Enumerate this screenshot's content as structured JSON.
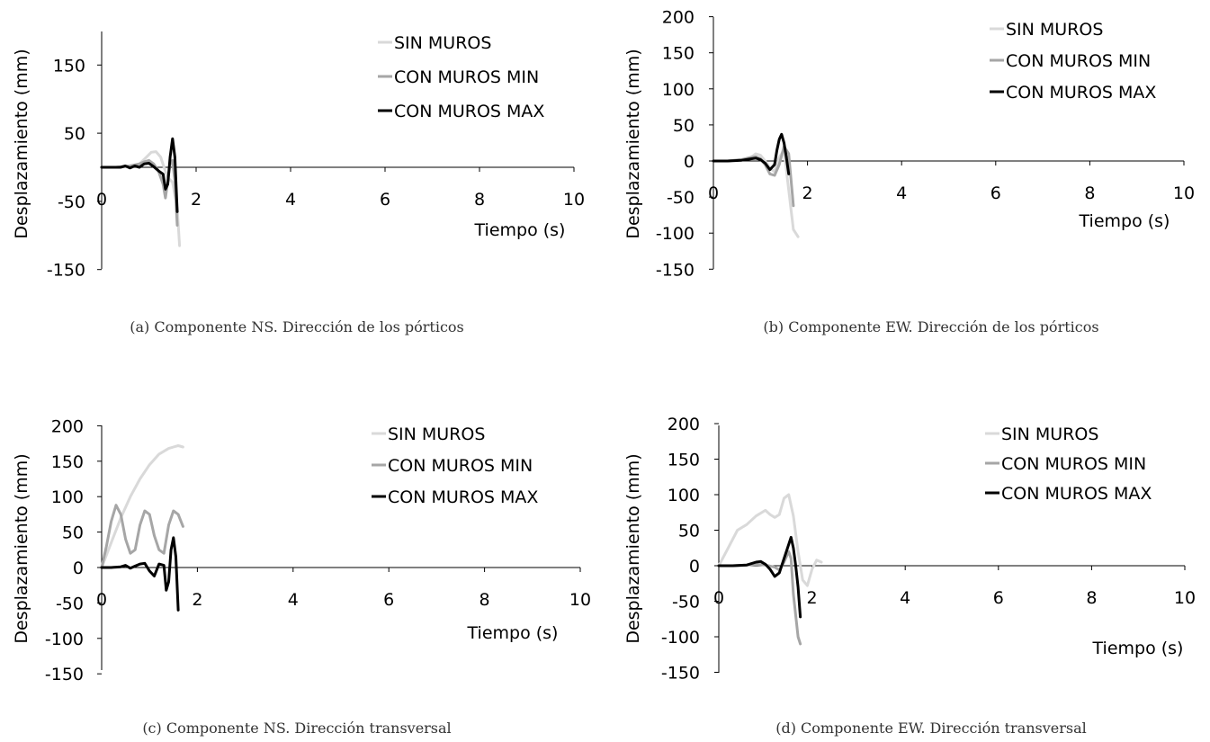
{
  "chart_data": [
    {
      "type": "line",
      "caption": "(a) Componente NS. Dirección de los pórticos",
      "xlabel": "Tiempo (s)",
      "ylabel": "Desplazamiento (mm)",
      "xlim": [
        0,
        10
      ],
      "ylim": [
        -150,
        200
      ],
      "xticks": [
        0,
        2,
        4,
        6,
        8,
        10
      ],
      "xtick_labels": [
        "0",
        "2",
        "4",
        "6",
        "8",
        "10"
      ],
      "yticks": [
        150,
        50,
        -50,
        -150
      ],
      "ytick_labels": [
        "150",
        "50",
        "-50",
        "-150"
      ],
      "grid": false,
      "legend_position": "top-right",
      "series": [
        {
          "name": "SIN MUROS",
          "color": "#d9d9d9",
          "x": [
            0,
            0.3,
            0.6,
            0.8,
            0.95,
            1.05,
            1.15,
            1.25,
            1.32,
            1.4,
            1.5,
            1.6,
            1.65
          ],
          "y": [
            0,
            0,
            2,
            5,
            15,
            22,
            23,
            15,
            0,
            -15,
            -22,
            -60,
            -115
          ]
        },
        {
          "name": "CON MUROS MIN",
          "color": "#a6a6a6",
          "x": [
            0,
            0.3,
            0.6,
            0.8,
            0.9,
            1.0,
            1.1,
            1.2,
            1.3,
            1.35,
            1.4,
            1.45,
            1.5,
            1.55,
            1.6
          ],
          "y": [
            0,
            0,
            2,
            5,
            8,
            10,
            5,
            -5,
            -25,
            -45,
            -20,
            5,
            10,
            -20,
            -85
          ]
        },
        {
          "name": "CON MUROS MAX",
          "color": "#000000",
          "x": [
            0,
            0.2,
            0.4,
            0.5,
            0.6,
            0.7,
            0.8,
            0.9,
            1.0,
            1.1,
            1.2,
            1.3,
            1.35,
            1.4,
            1.45,
            1.5,
            1.55,
            1.6
          ],
          "y": [
            0,
            0,
            0,
            2,
            -1,
            2,
            0,
            5,
            6,
            1,
            -5,
            -10,
            -32,
            -25,
            15,
            42,
            15,
            -65
          ]
        }
      ]
    },
    {
      "type": "line",
      "caption": "(b) Componente EW. Dirección de los pórticos",
      "xlabel": "Tiempo (s)",
      "ylabel": "Desplazamiento (mm)",
      "xlim": [
        0,
        10
      ],
      "ylim": [
        -150,
        200
      ],
      "xticks": [
        0,
        2,
        4,
        6,
        8,
        10
      ],
      "xtick_labels": [
        "0",
        "2",
        "4",
        "6",
        "8",
        "10"
      ],
      "yticks": [
        200,
        150,
        100,
        50,
        0,
        -50,
        -100,
        -150
      ],
      "ytick_labels": [
        "200",
        "150",
        "100",
        "50",
        "0",
        "-50",
        "-100",
        "-150"
      ],
      "grid": false,
      "legend_position": "top-right",
      "series": [
        {
          "name": "SIN MUROS",
          "color": "#d9d9d9",
          "x": [
            0,
            0.3,
            0.6,
            0.8,
            0.9,
            1.0,
            1.1,
            1.2,
            1.3,
            1.4,
            1.5,
            1.6,
            1.7,
            1.8
          ],
          "y": [
            0,
            0,
            2,
            5,
            10,
            8,
            0,
            -10,
            -15,
            5,
            15,
            -40,
            -95,
            -105
          ]
        },
        {
          "name": "CON MUROS MIN",
          "color": "#a6a6a6",
          "x": [
            0,
            0.3,
            0.6,
            0.8,
            0.9,
            1.0,
            1.1,
            1.2,
            1.3,
            1.4,
            1.5,
            1.6,
            1.7
          ],
          "y": [
            0,
            0,
            2,
            5,
            6,
            3,
            -5,
            -18,
            -20,
            -5,
            20,
            10,
            -62
          ]
        },
        {
          "name": "CON MUROS MAX",
          "color": "#000000",
          "x": [
            0,
            0.3,
            0.6,
            0.8,
            0.9,
            1.0,
            1.1,
            1.2,
            1.3,
            1.35,
            1.4,
            1.45,
            1.5,
            1.55,
            1.6
          ],
          "y": [
            0,
            0,
            1,
            3,
            4,
            2,
            -3,
            -12,
            -5,
            15,
            30,
            37,
            25,
            5,
            -18
          ]
        }
      ]
    },
    {
      "type": "line",
      "caption": "(c) Componente NS. Dirección transversal",
      "xlabel": "Tiempo (s)",
      "ylabel": "Desplazamiento (mm)",
      "xlim": [
        0,
        10
      ],
      "ylim": [
        -150,
        200
      ],
      "xticks": [
        0,
        2,
        4,
        6,
        8,
        10
      ],
      "xtick_labels": [
        "0",
        "2",
        "4",
        "6",
        "8",
        "10"
      ],
      "yticks": [
        200,
        150,
        100,
        50,
        0,
        -50,
        -100,
        -150
      ],
      "ytick_labels": [
        "200",
        "150",
        "100",
        "50",
        "0",
        "-50",
        "-100",
        "-150"
      ],
      "grid": false,
      "legend_position": "top-right",
      "series": [
        {
          "name": "SIN MUROS",
          "color": "#d9d9d9",
          "x": [
            0,
            0.2,
            0.4,
            0.6,
            0.8,
            1.0,
            1.2,
            1.4,
            1.5,
            1.6,
            1.7
          ],
          "y": [
            0,
            35,
            70,
            100,
            125,
            145,
            160,
            168,
            170,
            172,
            170
          ]
        },
        {
          "name": "CON MUROS MIN",
          "color": "#a6a6a6",
          "x": [
            0,
            0.1,
            0.2,
            0.3,
            0.4,
            0.5,
            0.6,
            0.7,
            0.8,
            0.9,
            1.0,
            1.1,
            1.2,
            1.3,
            1.4,
            1.5,
            1.6,
            1.7
          ],
          "y": [
            0,
            30,
            65,
            88,
            75,
            40,
            20,
            25,
            60,
            80,
            75,
            45,
            25,
            20,
            60,
            80,
            75,
            58
          ]
        },
        {
          "name": "CON MUROS MAX",
          "color": "#000000",
          "x": [
            0,
            0.2,
            0.4,
            0.5,
            0.6,
            0.7,
            0.8,
            0.9,
            1.0,
            1.1,
            1.2,
            1.3,
            1.35,
            1.4,
            1.45,
            1.5,
            1.55,
            1.6
          ],
          "y": [
            0,
            0,
            1,
            3,
            -1,
            2,
            5,
            6,
            -5,
            -12,
            5,
            3,
            -32,
            -20,
            25,
            42,
            15,
            -60
          ]
        }
      ]
    },
    {
      "type": "line",
      "caption": "(d) Componente EW. Dirección transversal",
      "xlabel": "Tiempo (s)",
      "ylabel": "Desplazamiento (mm)",
      "xlim": [
        0,
        10
      ],
      "ylim": [
        -150,
        200
      ],
      "xticks": [
        0,
        2,
        4,
        6,
        8,
        10
      ],
      "xtick_labels": [
        "0",
        "2",
        "4",
        "6",
        "8",
        "10"
      ],
      "yticks": [
        200,
        150,
        100,
        50,
        0,
        -50,
        -100,
        -150
      ],
      "ytick_labels": [
        "200",
        "150",
        "100",
        "50",
        "0",
        "-50",
        "-100",
        "-150"
      ],
      "grid": false,
      "legend_position": "top-right",
      "series": [
        {
          "name": "SIN MUROS",
          "color": "#d9d9d9",
          "x": [
            0,
            0.2,
            0.4,
            0.6,
            0.8,
            1.0,
            1.1,
            1.2,
            1.3,
            1.4,
            1.5,
            1.6,
            1.7,
            1.8,
            1.9,
            2.0,
            2.1,
            2.2
          ],
          "y": [
            0,
            25,
            50,
            58,
            70,
            78,
            72,
            68,
            72,
            95,
            100,
            70,
            20,
            -20,
            -28,
            -5,
            8,
            5
          ]
        },
        {
          "name": "CON MUROS MIN",
          "color": "#a6a6a6",
          "x": [
            0,
            0.3,
            0.6,
            0.8,
            1.0,
            1.2,
            1.3,
            1.4,
            1.5,
            1.55,
            1.6,
            1.7,
            1.75
          ],
          "y": [
            0,
            0,
            1,
            2,
            1,
            -2,
            -6,
            5,
            20,
            10,
            -40,
            -100,
            -110
          ]
        },
        {
          "name": "CON MUROS MAX",
          "color": "#000000",
          "x": [
            0,
            0.3,
            0.6,
            0.8,
            0.9,
            1.0,
            1.1,
            1.2,
            1.3,
            1.4,
            1.5,
            1.55,
            1.6,
            1.65,
            1.7,
            1.75
          ],
          "y": [
            0,
            0,
            1,
            5,
            6,
            2,
            -5,
            -15,
            -10,
            10,
            30,
            40,
            25,
            0,
            -30,
            -72
          ]
        }
      ]
    }
  ]
}
